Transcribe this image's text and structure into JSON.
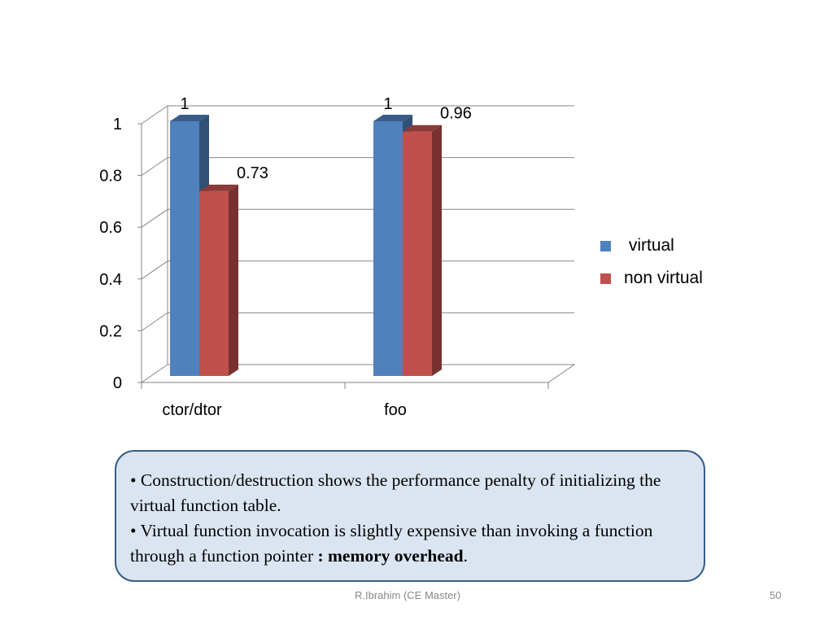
{
  "chart_data": {
    "type": "bar",
    "categories": [
      "ctor/dtor",
      "foo"
    ],
    "series": [
      {
        "name": "virtual",
        "values": [
          1,
          1
        ],
        "color": "#4f81bd"
      },
      {
        "name": "non virtual",
        "values": [
          0.73,
          0.96
        ],
        "color": "#c0504d"
      }
    ],
    "data_labels": [
      "1",
      "0.73",
      "1",
      "0.96"
    ],
    "y_ticks": [
      "0",
      "0.2",
      "0.4",
      "0.6",
      "0.8",
      "1"
    ],
    "ylim": [
      0,
      1
    ],
    "grid": true,
    "legend_position": "right",
    "style": "3d-clustered-column"
  },
  "legend": {
    "items": [
      {
        "label": " virtual",
        "color": "#4f81bd"
      },
      {
        "label": "non virtual",
        "color": "#c0504d"
      }
    ]
  },
  "note": {
    "line1": "• Construction/destruction shows the performance penalty of initializing the virtual function table.",
    "line2_text": "• Virtual function invocation is slightly expensive than invoking a function through a function pointer ",
    "line2_bold": ": memory overhead",
    "line2_end": "."
  },
  "footer": {
    "author": "R.Ibrahim (CE Master)",
    "page_number": "50"
  }
}
